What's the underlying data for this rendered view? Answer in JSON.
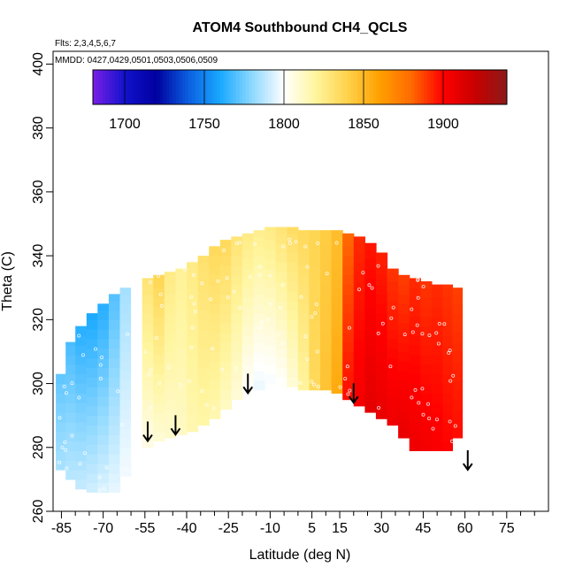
{
  "chart_data": {
    "type": "heatmap",
    "title": "ATOM4 Southbound CH4_QCLS",
    "flights_note": "Flts: 2,3,4,5,6,7",
    "dates_note": "MMDD: 0427,0429,0501,0503,0506,0509",
    "xlabel": "Latitude (deg N)",
    "ylabel": "Theta (C)",
    "xlim": [
      -88,
      90
    ],
    "ylim": [
      260,
      404
    ],
    "x_ticks": [
      -85,
      -70,
      -55,
      -40,
      -25,
      -10,
      5,
      15,
      30,
      45,
      60,
      75
    ],
    "x_minor_ticks": [
      -80,
      -75,
      -65,
      -60,
      -50,
      -45,
      -35,
      -30,
      -20,
      -15,
      -5,
      0,
      10,
      20,
      25,
      35,
      40,
      50,
      55,
      65,
      70,
      80,
      85
    ],
    "y_ticks": [
      260,
      280,
      300,
      320,
      340,
      360,
      380,
      400
    ],
    "colorbar": {
      "range": [
        1680,
        1940
      ],
      "ticks": [
        1700,
        1750,
        1800,
        1850,
        1900
      ],
      "colors": [
        "#7a1fe6",
        "#1212cc",
        "#0000a0",
        "#0a5fe0",
        "#19a9ff",
        "#8ed8ff",
        "#ffffff",
        "#fff59e",
        "#ffd24a",
        "#ffa000",
        "#ff6a00",
        "#ff0000",
        "#c80000",
        "#8b1a1a"
      ]
    },
    "profiles": [
      {
        "lat": -85,
        "theta_min": 273,
        "theta_max": 303,
        "ch4": [
          1785,
          1772
        ]
      },
      {
        "lat": -82,
        "theta_min": 270,
        "theta_max": 313,
        "ch4": [
          1788,
          1768
        ]
      },
      {
        "lat": -78,
        "theta_min": 267,
        "theta_max": 318,
        "ch4": [
          1790,
          1762
        ]
      },
      {
        "lat": -74,
        "theta_min": 266,
        "theta_max": 322,
        "ch4": [
          1792,
          1760
        ]
      },
      {
        "lat": -70,
        "theta_min": 266,
        "theta_max": 325,
        "ch4": [
          1794,
          1762
        ]
      },
      {
        "lat": -66,
        "theta_min": 266,
        "theta_max": 328,
        "ch4": [
          1796,
          1770
        ]
      },
      {
        "lat": -62,
        "theta_min": 271,
        "theta_max": 330,
        "ch4": [
          1798,
          1784
        ]
      },
      {
        "lat": -58,
        "theta_min": 275,
        "theta_max": 331,
        "ch4": [
          1800,
          1800
        ]
      },
      {
        "lat": -54,
        "theta_min": 280,
        "theta_max": 333,
        "ch4": [
          1805,
          1830
        ]
      },
      {
        "lat": -50,
        "theta_min": 282,
        "theta_max": 334,
        "ch4": [
          1808,
          1838
        ]
      },
      {
        "lat": -46,
        "theta_min": 283,
        "theta_max": 335,
        "ch4": [
          1810,
          1826
        ]
      },
      {
        "lat": -42,
        "theta_min": 284,
        "theta_max": 336,
        "ch4": [
          1812,
          1822
        ]
      },
      {
        "lat": -38,
        "theta_min": 285,
        "theta_max": 338,
        "ch4": [
          1816,
          1826
        ]
      },
      {
        "lat": -34,
        "theta_min": 287,
        "theta_max": 340,
        "ch4": [
          1818,
          1832
        ]
      },
      {
        "lat": -30,
        "theta_min": 289,
        "theta_max": 343,
        "ch4": [
          1816,
          1836
        ]
      },
      {
        "lat": -26,
        "theta_min": 292,
        "theta_max": 345,
        "ch4": [
          1812,
          1836
        ]
      },
      {
        "lat": -22,
        "theta_min": 295,
        "theta_max": 346,
        "ch4": [
          1808,
          1830
        ]
      },
      {
        "lat": -18,
        "theta_min": 297,
        "theta_max": 347,
        "ch4": [
          1800,
          1826
        ]
      },
      {
        "lat": -14,
        "theta_min": 298,
        "theta_max": 348,
        "ch4": [
          1796,
          1824
        ]
      },
      {
        "lat": -10,
        "theta_min": 300,
        "theta_max": 349,
        "ch4": [
          1798,
          1826
        ]
      },
      {
        "lat": -6,
        "theta_min": 299,
        "theta_max": 349,
        "ch4": [
          1800,
          1830
        ]
      },
      {
        "lat": -2,
        "theta_min": 299,
        "theta_max": 349,
        "ch4": [
          1808,
          1834
        ]
      },
      {
        "lat": 2,
        "theta_min": 298,
        "theta_max": 348,
        "ch4": [
          1820,
          1836
        ]
      },
      {
        "lat": 6,
        "theta_min": 298,
        "theta_max": 348,
        "ch4": [
          1836,
          1838
        ]
      },
      {
        "lat": 10,
        "theta_min": 298,
        "theta_max": 348,
        "ch4": [
          1846,
          1842
        ]
      },
      {
        "lat": 14,
        "theta_min": 297,
        "theta_max": 348,
        "ch4": [
          1856,
          1848
        ]
      },
      {
        "lat": 18,
        "theta_min": 295,
        "theta_max": 347,
        "ch4": [
          1898,
          1880
        ]
      },
      {
        "lat": 22,
        "theta_min": 293,
        "theta_max": 346,
        "ch4": [
          1904,
          1892
        ]
      },
      {
        "lat": 26,
        "theta_min": 291,
        "theta_max": 344,
        "ch4": [
          1910,
          1896
        ]
      },
      {
        "lat": 30,
        "theta_min": 289,
        "theta_max": 341,
        "ch4": [
          1908,
          1894
        ]
      },
      {
        "lat": 34,
        "theta_min": 287,
        "theta_max": 336,
        "ch4": [
          1906,
          1890
        ]
      },
      {
        "lat": 38,
        "theta_min": 283,
        "theta_max": 334,
        "ch4": [
          1908,
          1888
        ]
      },
      {
        "lat": 42,
        "theta_min": 279,
        "theta_max": 333,
        "ch4": [
          1906,
          1892
        ]
      },
      {
        "lat": 46,
        "theta_min": 279,
        "theta_max": 332,
        "ch4": [
          1904,
          1890
        ]
      },
      {
        "lat": 50,
        "theta_min": 279,
        "theta_max": 331,
        "ch4": [
          1902,
          1892
        ]
      },
      {
        "lat": 54,
        "theta_min": 279,
        "theta_max": 331,
        "ch4": [
          1900,
          1890
        ]
      },
      {
        "lat": 57,
        "theta_min": 283,
        "theta_max": 330,
        "ch4": [
          1898,
          1888
        ]
      }
    ],
    "arrows": [
      {
        "lat": -54,
        "theta": 282
      },
      {
        "lat": -44,
        "theta": 284
      },
      {
        "lat": -18,
        "theta": 297
      },
      {
        "lat": 20,
        "theta": 294
      },
      {
        "lat": 61,
        "theta": 273
      }
    ],
    "grid": false,
    "legend": "colorbar top"
  }
}
